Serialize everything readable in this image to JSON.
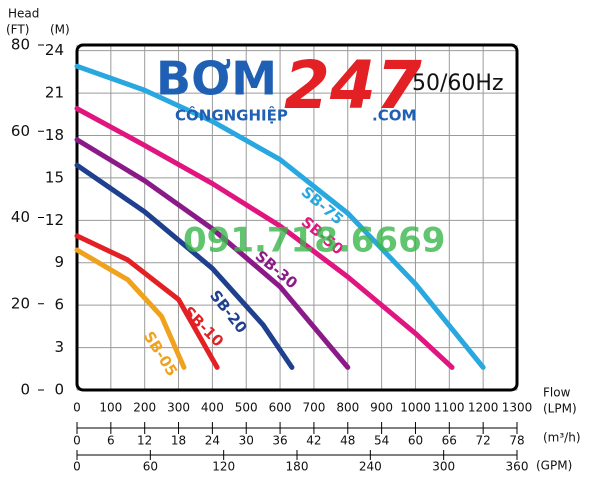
{
  "chart_data": {
    "type": "line",
    "y_title": "Head",
    "y2_unit": "(FT)",
    "y_unit": "(M)",
    "x_title": "Flow",
    "x_unit": "(LPM)",
    "x2_unit": "(m³/h)",
    "x3_unit": "(GPM)",
    "frequency": "50/60Hz",
    "watermark": {
      "brand": "BƠM",
      "number": "247",
      "sub": "CÔNGNGHIỆP",
      "domain": ".COM",
      "phone": "091.718.6669"
    },
    "xlim": [
      0,
      1300
    ],
    "xticks": [
      0,
      100,
      200,
      300,
      400,
      500,
      600,
      700,
      800,
      900,
      1000,
      1100,
      1200,
      1300
    ],
    "x2lim": [
      0,
      78
    ],
    "x2ticks": [
      0,
      6,
      12,
      18,
      24,
      30,
      36,
      42,
      48,
      54,
      60,
      66,
      72,
      78
    ],
    "x3lim": [
      0,
      360
    ],
    "x3ticks": [
      0,
      60,
      120,
      180,
      240,
      300,
      360
    ],
    "ylim": [
      0,
      24.4
    ],
    "yticks": [
      0,
      3,
      6,
      9,
      12,
      15,
      18,
      21,
      24
    ],
    "y2lim": [
      0,
      80
    ],
    "y2ticks": [
      0,
      20,
      40,
      60,
      80
    ],
    "grid": true,
    "series": [
      {
        "name": "SB-75",
        "color": "#29a8e0",
        "x": [
          0,
          200,
          400,
          600,
          800,
          1000,
          1200
        ],
        "values": [
          22.9,
          21.2,
          19,
          16.3,
          12.5,
          7.5,
          1.6
        ]
      },
      {
        "name": "SB-50",
        "color": "#e0157f",
        "x": [
          0,
          200,
          400,
          600,
          800,
          1000,
          1108
        ],
        "values": [
          19.9,
          17.3,
          14.6,
          11.6,
          8,
          4,
          1.6
        ]
      },
      {
        "name": "SB-30",
        "color": "#8b1a89",
        "x": [
          0,
          200,
          400,
          600,
          800
        ],
        "values": [
          17.7,
          14.8,
          11.4,
          7.3,
          1.6
        ]
      },
      {
        "name": "SB-20",
        "color": "#1f3f8f",
        "x": [
          0,
          200,
          400,
          550,
          635
        ],
        "values": [
          15.9,
          12.6,
          8.6,
          4.6,
          1.6
        ]
      },
      {
        "name": "SB-10",
        "color": "#e32024",
        "x": [
          0,
          150,
          300,
          414
        ],
        "values": [
          10.9,
          9.2,
          6.4,
          1.6
        ]
      },
      {
        "name": "SB-05",
        "color": "#f0a21c",
        "x": [
          0,
          150,
          250,
          316
        ],
        "values": [
          9.9,
          7.8,
          5.2,
          1.6
        ]
      }
    ]
  }
}
